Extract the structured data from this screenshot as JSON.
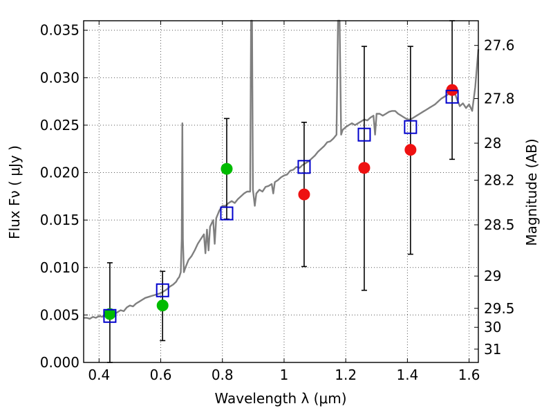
{
  "chart_data": {
    "type": "scatter",
    "xlabel": "Wavelength  λ (μm)",
    "ylabel": "Flux  Fν  ( μJy )",
    "y2label": "Magnitude (AB)",
    "xlim": [
      0.35,
      1.63
    ],
    "ylim": [
      0.0,
      0.036
    ],
    "grid": true,
    "x_ticks": [
      {
        "value": 0.4,
        "label": "0.4"
      },
      {
        "value": 0.6,
        "label": "0.6"
      },
      {
        "value": 0.8,
        "label": "0.8"
      },
      {
        "value": 1.0,
        "label": "1"
      },
      {
        "value": 1.2,
        "label": "1.2"
      },
      {
        "value": 1.4,
        "label": "1.4"
      },
      {
        "value": 1.6,
        "label": "1.6"
      }
    ],
    "y_ticks": [
      {
        "value": 0.0,
        "label": "0.000"
      },
      {
        "value": 0.005,
        "label": "0.005"
      },
      {
        "value": 0.01,
        "label": "0.010"
      },
      {
        "value": 0.015,
        "label": "0.015"
      },
      {
        "value": 0.02,
        "label": "0.020"
      },
      {
        "value": 0.025,
        "label": "0.025"
      },
      {
        "value": 0.03,
        "label": "0.030"
      },
      {
        "value": 0.035,
        "label": "0.035"
      }
    ],
    "y2_ticks": [
      {
        "flux": 0.0334,
        "label": "27.6"
      },
      {
        "flux": 0.0278,
        "label": "27.8"
      },
      {
        "flux": 0.0231,
        "label": "28"
      },
      {
        "flux": 0.0192,
        "label": "28.2"
      },
      {
        "flux": 0.0145,
        "label": "28.5"
      },
      {
        "flux": 0.0091,
        "label": "29"
      },
      {
        "flux": 0.0057,
        "label": "29.5"
      },
      {
        "flux": 0.0037,
        "label": "30"
      },
      {
        "flux": 0.0014,
        "label": "31"
      }
    ],
    "colors": {
      "spectrum": "#7f7f7f",
      "model_marker": "#0000cc",
      "green_marker": "#00bb00",
      "red_marker": "#ee1111",
      "errorbar": "#000000",
      "grid": "#555555"
    },
    "series": [
      {
        "marker": "circle",
        "color": "green",
        "points": [
          {
            "x": 0.435,
            "y": 0.0051,
            "yerr_low": 0.0,
            "yerr_high": 0.0105
          },
          {
            "x": 0.606,
            "y": 0.006,
            "yerr_low": 0.0023,
            "yerr_high": 0.0096
          },
          {
            "x": 0.814,
            "y": 0.0204,
            "yerr_low": 0.0151,
            "yerr_high": 0.0257
          }
        ]
      },
      {
        "marker": "circle",
        "color": "red",
        "points": [
          {
            "x": 1.065,
            "y": 0.0177,
            "yerr_low": 0.0101,
            "yerr_high": 0.0253
          },
          {
            "x": 1.26,
            "y": 0.0205,
            "yerr_low": 0.0076,
            "yerr_high": 0.0333
          },
          {
            "x": 1.41,
            "y": 0.0224,
            "yerr_low": 0.0114,
            "yerr_high": 0.0333
          },
          {
            "x": 1.545,
            "y": 0.0287,
            "yerr_low": 0.0214,
            "yerr_high": 0.036
          }
        ]
      },
      {
        "marker": "square",
        "color": "blue",
        "points": [
          {
            "x": 0.435,
            "y": 0.0049
          },
          {
            "x": 0.606,
            "y": 0.0076
          },
          {
            "x": 0.814,
            "y": 0.0157
          },
          {
            "x": 1.065,
            "y": 0.0206
          },
          {
            "x": 1.26,
            "y": 0.024
          },
          {
            "x": 1.41,
            "y": 0.0248
          },
          {
            "x": 1.545,
            "y": 0.028
          }
        ]
      },
      {
        "type": "line",
        "points": [
          [
            0.35,
            0.0047
          ],
          [
            0.36,
            0.0047
          ],
          [
            0.37,
            0.0046
          ],
          [
            0.38,
            0.0048
          ],
          [
            0.39,
            0.0047
          ],
          [
            0.4,
            0.0049
          ],
          [
            0.41,
            0.0048
          ],
          [
            0.42,
            0.0051
          ],
          [
            0.43,
            0.005
          ],
          [
            0.44,
            0.0052
          ],
          [
            0.45,
            0.0051
          ],
          [
            0.46,
            0.0053
          ],
          [
            0.47,
            0.0055
          ],
          [
            0.48,
            0.0054
          ],
          [
            0.49,
            0.0058
          ],
          [
            0.5,
            0.006
          ],
          [
            0.51,
            0.0059
          ],
          [
            0.52,
            0.0062
          ],
          [
            0.53,
            0.0064
          ],
          [
            0.54,
            0.0066
          ],
          [
            0.55,
            0.0068
          ],
          [
            0.56,
            0.0069
          ],
          [
            0.57,
            0.007
          ],
          [
            0.58,
            0.0071
          ],
          [
            0.59,
            0.0072
          ],
          [
            0.6,
            0.0073
          ],
          [
            0.61,
            0.0075
          ],
          [
            0.62,
            0.0077
          ],
          [
            0.63,
            0.008
          ],
          [
            0.64,
            0.0082
          ],
          [
            0.65,
            0.0085
          ],
          [
            0.655,
            0.0088
          ],
          [
            0.66,
            0.009
          ],
          [
            0.665,
            0.0095
          ],
          [
            0.668,
            0.013
          ],
          [
            0.67,
            0.0252
          ],
          [
            0.672,
            0.013
          ],
          [
            0.675,
            0.0095
          ],
          [
            0.68,
            0.01
          ],
          [
            0.69,
            0.0108
          ],
          [
            0.7,
            0.0112
          ],
          [
            0.71,
            0.0118
          ],
          [
            0.72,
            0.0125
          ],
          [
            0.73,
            0.013
          ],
          [
            0.74,
            0.0135
          ],
          [
            0.745,
            0.0115
          ],
          [
            0.75,
            0.014
          ],
          [
            0.755,
            0.0118
          ],
          [
            0.76,
            0.0143
          ],
          [
            0.77,
            0.015
          ],
          [
            0.775,
            0.0125
          ],
          [
            0.78,
            0.0152
          ],
          [
            0.79,
            0.016
          ],
          [
            0.8,
            0.0165
          ],
          [
            0.81,
            0.0165
          ],
          [
            0.82,
            0.0168
          ],
          [
            0.83,
            0.017
          ],
          [
            0.84,
            0.0168
          ],
          [
            0.85,
            0.0172
          ],
          [
            0.86,
            0.0175
          ],
          [
            0.87,
            0.0178
          ],
          [
            0.88,
            0.018
          ],
          [
            0.89,
            0.018
          ],
          [
            0.893,
            0.036
          ],
          [
            0.896,
            0.036
          ],
          [
            0.899,
            0.0182
          ],
          [
            0.905,
            0.0165
          ],
          [
            0.91,
            0.0178
          ],
          [
            0.92,
            0.0182
          ],
          [
            0.93,
            0.018
          ],
          [
            0.94,
            0.0185
          ],
          [
            0.95,
            0.0186
          ],
          [
            0.96,
            0.0188
          ],
          [
            0.965,
            0.0178
          ],
          [
            0.97,
            0.019
          ],
          [
            0.98,
            0.0192
          ],
          [
            0.99,
            0.0195
          ],
          [
            1.0,
            0.0197
          ],
          [
            1.01,
            0.0198
          ],
          [
            1.02,
            0.0202
          ],
          [
            1.03,
            0.0203
          ],
          [
            1.04,
            0.0206
          ],
          [
            1.05,
            0.0205
          ],
          [
            1.06,
            0.0208
          ],
          [
            1.07,
            0.021
          ],
          [
            1.08,
            0.0212
          ],
          [
            1.09,
            0.0215
          ],
          [
            1.1,
            0.0218
          ],
          [
            1.11,
            0.0222
          ],
          [
            1.12,
            0.0225
          ],
          [
            1.13,
            0.0228
          ],
          [
            1.14,
            0.0232
          ],
          [
            1.15,
            0.0233
          ],
          [
            1.16,
            0.0236
          ],
          [
            1.17,
            0.024
          ],
          [
            1.175,
            0.036
          ],
          [
            1.18,
            0.036
          ],
          [
            1.185,
            0.024
          ],
          [
            1.19,
            0.0245
          ],
          [
            1.2,
            0.0248
          ],
          [
            1.21,
            0.025
          ],
          [
            1.22,
            0.0252
          ],
          [
            1.23,
            0.025
          ],
          [
            1.24,
            0.0252
          ],
          [
            1.25,
            0.0254
          ],
          [
            1.26,
            0.0256
          ],
          [
            1.27,
            0.0255
          ],
          [
            1.28,
            0.0258
          ],
          [
            1.29,
            0.026
          ],
          [
            1.295,
            0.024
          ],
          [
            1.3,
            0.0262
          ],
          [
            1.31,
            0.0262
          ],
          [
            1.32,
            0.026
          ],
          [
            1.33,
            0.0262
          ],
          [
            1.34,
            0.0264
          ],
          [
            1.35,
            0.0265
          ],
          [
            1.36,
            0.0265
          ],
          [
            1.37,
            0.0262
          ],
          [
            1.38,
            0.026
          ],
          [
            1.39,
            0.0258
          ],
          [
            1.4,
            0.0256
          ],
          [
            1.41,
            0.0256
          ],
          [
            1.42,
            0.0258
          ],
          [
            1.43,
            0.026
          ],
          [
            1.44,
            0.0262
          ],
          [
            1.45,
            0.0264
          ],
          [
            1.46,
            0.0266
          ],
          [
            1.47,
            0.0268
          ],
          [
            1.48,
            0.027
          ],
          [
            1.49,
            0.0272
          ],
          [
            1.5,
            0.0275
          ],
          [
            1.51,
            0.0278
          ],
          [
            1.52,
            0.028
          ],
          [
            1.53,
            0.0282
          ],
          [
            1.54,
            0.0285
          ],
          [
            1.55,
            0.0287
          ],
          [
            1.56,
            0.0278
          ],
          [
            1.57,
            0.027
          ],
          [
            1.58,
            0.0273
          ],
          [
            1.59,
            0.0268
          ],
          [
            1.6,
            0.0272
          ],
          [
            1.61,
            0.0265
          ],
          [
            1.62,
            0.029
          ],
          [
            1.63,
            0.033
          ]
        ]
      }
    ]
  }
}
